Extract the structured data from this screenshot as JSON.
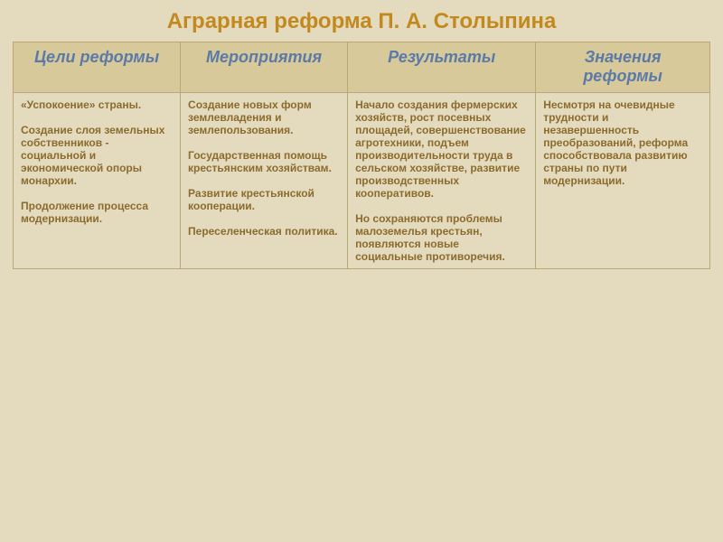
{
  "title": "Аграрная реформа П. А. Столыпина",
  "colors": {
    "background": "#e4dabe",
    "title": "#c28a1e",
    "header_bg": "#d7c99a",
    "header_text": "#5b7aa8",
    "body_bg": "#e4dabe",
    "body_text": "#8b6c2e",
    "border": "#b8a878"
  },
  "typography": {
    "title_fontsize": 24,
    "header_fontsize": 18,
    "body_fontsize": 12
  },
  "table": {
    "columns": [
      {
        "key": "goals",
        "label": "Цели реформы",
        "width_pct": 24
      },
      {
        "key": "actions",
        "label": "Мероприятия",
        "width_pct": 24
      },
      {
        "key": "results",
        "label": "Результаты",
        "width_pct": 27
      },
      {
        "key": "meaning",
        "label": "Значения реформы",
        "width_pct": 25
      }
    ],
    "cells": {
      "goals": [
        "«Успокоение» страны.",
        "Создание слоя земельных собственников - социальной и экономической опоры монархии.",
        "Продолжение процесса модернизации."
      ],
      "actions": [
        "Создание новых форм землевладения и землепользования.",
        "Государственная помощь крестьянским хозяйствам.",
        "Развитие крестьянской кооперации.",
        "Переселенческая политика."
      ],
      "results": [
        "Начало создания фермерских хозяйств, рост посевных площадей, совершенствование агротехники, подъем производительности труда в сельском хозяйстве, развитие производственных кооперативов.",
        "Но сохраняются проблемы малоземелья крестьян, появляются новые социальные противоречия."
      ],
      "meaning": [
        "Несмотря на очевидные трудности и незавершенность преобразований, реформа способствовала развитию страны по пути модернизации."
      ]
    }
  }
}
